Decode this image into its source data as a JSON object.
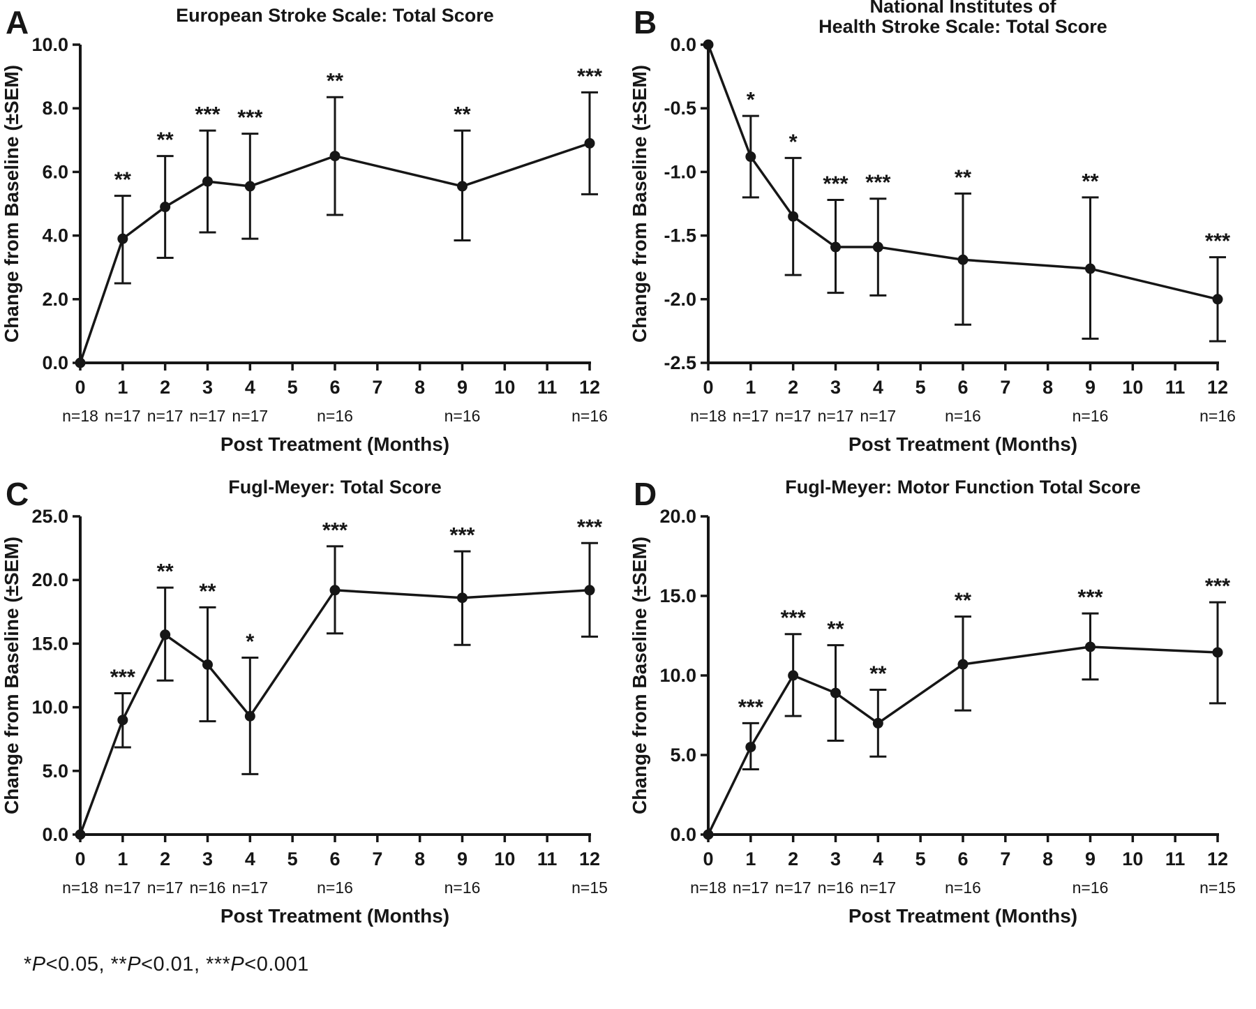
{
  "page": {
    "background": "#ffffff",
    "ink": "#161616"
  },
  "footnote": {
    "segments": [
      {
        "text": "*"
      },
      {
        "text": "P",
        "italic": true
      },
      {
        "text": "<0.05,  "
      },
      {
        "text": "**"
      },
      {
        "text": "P",
        "italic": true
      },
      {
        "text": "<0.01,  "
      },
      {
        "text": "***"
      },
      {
        "text": "P",
        "italic": true
      },
      {
        "text": "<0.001"
      }
    ]
  },
  "chart_data": [
    {
      "type": "line",
      "panel_label": "A",
      "title_lines": [
        "European Stroke Scale: Total Score"
      ],
      "xlabel": "Post Treatment (Months)",
      "ylabel": "Change from Baseline (±SEM)",
      "grid": false,
      "legend": null,
      "xlim": [
        0,
        12
      ],
      "ylim": [
        0,
        10
      ],
      "xticks": [
        0,
        1,
        2,
        3,
        4,
        5,
        6,
        7,
        8,
        9,
        10,
        11,
        12
      ],
      "ytick_vals": [
        0,
        2,
        4,
        6,
        8,
        10
      ],
      "ytick_labels": [
        "0.0",
        "2.0",
        "4.0",
        "6.0",
        "8.0",
        "10.0"
      ],
      "x": [
        0,
        1,
        2,
        3,
        4,
        6,
        9,
        12
      ],
      "y": [
        0,
        3.9,
        4.9,
        5.7,
        5.55,
        6.5,
        5.55,
        6.9
      ],
      "lo": [
        null,
        2.5,
        3.3,
        4.1,
        3.9,
        4.65,
        3.85,
        5.3
      ],
      "hi": [
        null,
        5.25,
        6.5,
        7.3,
        7.2,
        8.35,
        7.3,
        8.5
      ],
      "sig": [
        "",
        "**",
        "**",
        "***",
        "***",
        "**",
        "**",
        "***"
      ],
      "n_labels": [
        "n=18",
        "n=17",
        "n=17",
        "n=17",
        "n=17",
        "n=16",
        "n=16",
        "n=16"
      ]
    },
    {
      "type": "line",
      "panel_label": "B",
      "title_lines": [
        "National Institutes of",
        "Health Stroke Scale: Total Score"
      ],
      "xlabel": "Post Treatment (Months)",
      "ylabel": "Change from Baseline (±SEM)",
      "grid": false,
      "legend": null,
      "xlim": [
        0,
        12
      ],
      "ylim": [
        -2.5,
        0
      ],
      "xticks": [
        0,
        1,
        2,
        3,
        4,
        5,
        6,
        7,
        8,
        9,
        10,
        11,
        12
      ],
      "ytick_vals": [
        0,
        -0.5,
        -1.0,
        -1.5,
        -2.0,
        -2.5
      ],
      "ytick_labels": [
        "0.0",
        "-0.5",
        "-1.0",
        "-1.5",
        "-2.0",
        "-2.5"
      ],
      "x": [
        0,
        1,
        2,
        3,
        4,
        6,
        9,
        12
      ],
      "y": [
        0,
        -0.88,
        -1.35,
        -1.59,
        -1.59,
        -1.69,
        -1.76,
        -2.0
      ],
      "lo": [
        null,
        -1.2,
        -1.81,
        -1.95,
        -1.97,
        -2.2,
        -2.31,
        -2.33
      ],
      "hi": [
        null,
        -0.56,
        -0.89,
        -1.22,
        -1.21,
        -1.17,
        -1.2,
        -1.67
      ],
      "sig": [
        "",
        "*",
        "*",
        "***",
        "***",
        "**",
        "**",
        "***"
      ],
      "n_labels": [
        "n=18",
        "n=17",
        "n=17",
        "n=17",
        "n=17",
        "n=16",
        "n=16",
        "n=16"
      ]
    },
    {
      "type": "line",
      "panel_label": "C",
      "title_lines": [
        "Fugl-Meyer: Total Score"
      ],
      "xlabel": "Post Treatment (Months)",
      "ylabel": "Change from Baseline (±SEM)",
      "grid": false,
      "legend": null,
      "xlim": [
        0,
        12
      ],
      "ylim": [
        0,
        25
      ],
      "xticks": [
        0,
        1,
        2,
        3,
        4,
        5,
        6,
        7,
        8,
        9,
        10,
        11,
        12
      ],
      "ytick_vals": [
        0,
        5,
        10,
        15,
        20,
        25
      ],
      "ytick_labels": [
        "0.0",
        "5.0",
        "10.0",
        "15.0",
        "20.0",
        "25.0"
      ],
      "x": [
        0,
        1,
        2,
        3,
        4,
        6,
        9,
        12
      ],
      "y": [
        0,
        9.0,
        15.7,
        13.35,
        9.3,
        19.2,
        18.6,
        19.2
      ],
      "lo": [
        null,
        6.85,
        12.1,
        8.9,
        4.75,
        15.8,
        14.9,
        15.55
      ],
      "hi": [
        null,
        11.1,
        19.4,
        17.85,
        13.9,
        22.65,
        22.25,
        22.9
      ],
      "sig": [
        "",
        "***",
        "**",
        "**",
        "*",
        "***",
        "***",
        "***"
      ],
      "n_labels": [
        "n=18",
        "n=17",
        "n=17",
        "n=16",
        "n=17",
        "n=16",
        "n=16",
        "n=15"
      ]
    },
    {
      "type": "line",
      "panel_label": "D",
      "title_lines": [
        "Fugl-Meyer: Motor Function Total Score"
      ],
      "xlabel": "Post Treatment (Months)",
      "ylabel": "Change from Baseline (±SEM)",
      "grid": false,
      "legend": null,
      "xlim": [
        0,
        12
      ],
      "ylim": [
        0,
        20
      ],
      "xticks": [
        0,
        1,
        2,
        3,
        4,
        5,
        6,
        7,
        8,
        9,
        10,
        11,
        12
      ],
      "ytick_vals": [
        0,
        5,
        10,
        15,
        20
      ],
      "ytick_labels": [
        "0.0",
        "5.0",
        "10.0",
        "15.0",
        "20.0"
      ],
      "x": [
        0,
        1,
        2,
        3,
        4,
        6,
        9,
        12
      ],
      "y": [
        0,
        5.5,
        10.0,
        8.9,
        7.0,
        10.7,
        11.8,
        11.45
      ],
      "lo": [
        null,
        4.1,
        7.45,
        5.9,
        4.9,
        7.8,
        9.75,
        8.25
      ],
      "hi": [
        null,
        7.0,
        12.6,
        11.9,
        9.1,
        13.7,
        13.9,
        14.6
      ],
      "sig": [
        "",
        "***",
        "***",
        "**",
        "**",
        "**",
        "***",
        "***"
      ],
      "n_labels": [
        "n=18",
        "n=17",
        "n=17",
        "n=16",
        "n=17",
        "n=16",
        "n=16",
        "n=15"
      ]
    }
  ]
}
